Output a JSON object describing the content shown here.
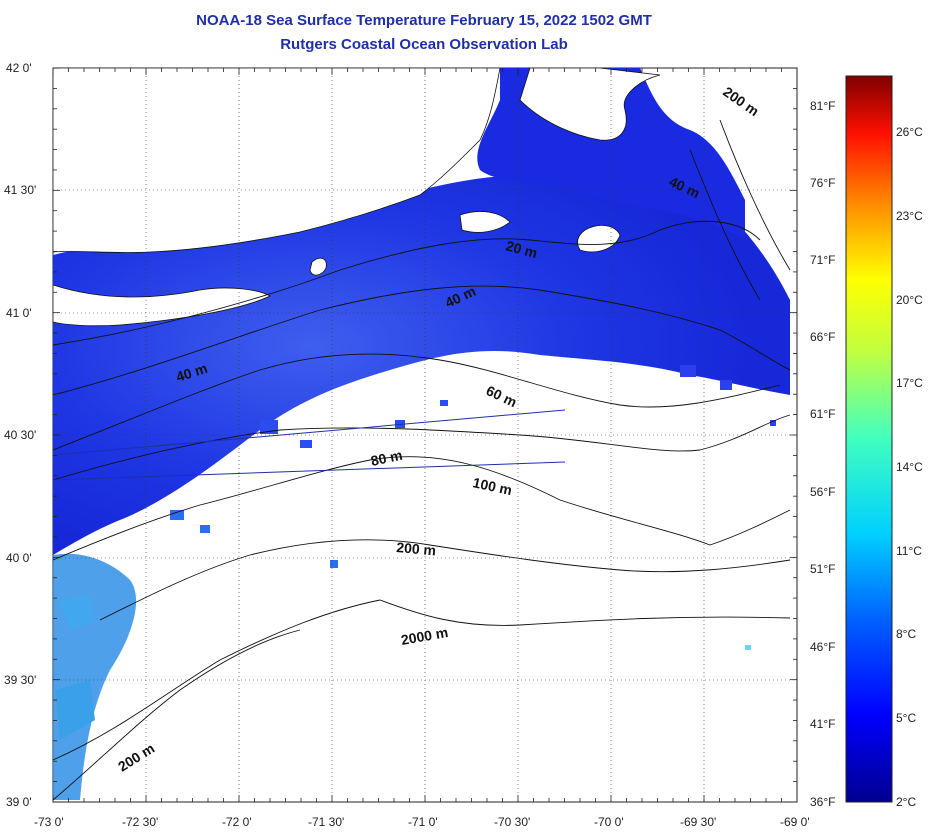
{
  "header": {
    "title": "NOAA-18 Sea Surface Temperature February 15, 2022 1502 GMT",
    "subtitle": "Rutgers Coastal Ocean Observation Lab"
  },
  "map": {
    "lat_labels": [
      "42 0'",
      "41 30'",
      "41 0'",
      "40 30'",
      "40 0'",
      "39 30'",
      "39 0'"
    ],
    "lon_labels": [
      "-73 0'",
      "-72 30'",
      "-72 0'",
      "-71 30'",
      "-71 0'",
      "-70 30'",
      "-70 0'",
      "-69 30'",
      "-69 0'"
    ],
    "fahrenheit_labels": [
      "81°F",
      "76°F",
      "71°F",
      "66°F",
      "61°F",
      "56°F",
      "51°F",
      "46°F",
      "41°F",
      "36°F"
    ],
    "depth_labels": [
      "200 m",
      "40 m",
      "20 m",
      "40 m",
      "40 m",
      "60 m",
      "80 m",
      "100 m",
      "200 m",
      "2000 m",
      "200 m"
    ]
  },
  "colorbar": {
    "labels": [
      "26°C",
      "23°C",
      "20°C",
      "17°C",
      "14°C",
      "11°C",
      "8°C",
      "5°C",
      "2°C"
    ],
    "colors": [
      "#7f0000",
      "#ff0000",
      "#ff8000",
      "#ffff00",
      "#80ff80",
      "#00ffff",
      "#0080ff",
      "#0000ff",
      "#00008f"
    ]
  },
  "colors": {
    "title": "#1f2fa8",
    "water_cold": "#1a2ee0",
    "water_warm": "#2f8fe8",
    "land": "#ffffff"
  }
}
